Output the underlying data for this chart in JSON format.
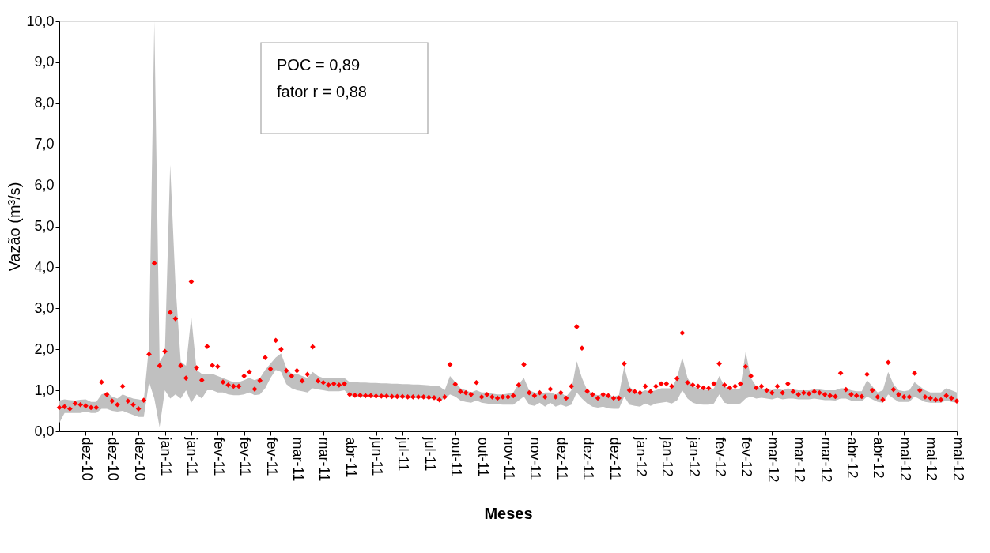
{
  "chart_data": {
    "type": "scatter",
    "xlabel": "Meses",
    "ylabel": "Vazão (m³/s)",
    "ylim": [
      0,
      10
    ],
    "yticks": [
      {
        "value": 0,
        "label": "0,0"
      },
      {
        "value": 1,
        "label": "1,0"
      },
      {
        "value": 2,
        "label": "2,0"
      },
      {
        "value": 3,
        "label": "3,0"
      },
      {
        "value": 4,
        "label": "4,0"
      },
      {
        "value": 5,
        "label": "5,0"
      },
      {
        "value": 6,
        "label": "6,0"
      },
      {
        "value": 7,
        "label": "7,0"
      },
      {
        "value": 8,
        "label": "8,0"
      },
      {
        "value": 9,
        "label": "9,0"
      },
      {
        "value": 10,
        "label": "10,0"
      }
    ],
    "grid": false,
    "marker": "diamond",
    "annotations": [
      "POC = 0,89",
      "fator r =  0,88"
    ],
    "categories": [
      null,
      null,
      null,
      null,
      null,
      "dez-10",
      null,
      null,
      null,
      null,
      "dez-10",
      null,
      null,
      null,
      null,
      "dez-10",
      null,
      null,
      null,
      null,
      "jan-11",
      null,
      null,
      null,
      null,
      "jan-11",
      null,
      null,
      null,
      null,
      "fev-11",
      null,
      null,
      null,
      null,
      "fev-11",
      null,
      null,
      null,
      null,
      "fev-11",
      null,
      null,
      null,
      null,
      "mar-11",
      null,
      null,
      null,
      null,
      "mar-11",
      null,
      null,
      null,
      null,
      "abr-11",
      null,
      null,
      null,
      null,
      "jun-11",
      null,
      null,
      null,
      null,
      "jul-11",
      null,
      null,
      null,
      null,
      "jul-11",
      null,
      null,
      null,
      null,
      "out-11",
      null,
      null,
      null,
      null,
      "out-11",
      null,
      null,
      null,
      null,
      "nov-11",
      null,
      null,
      null,
      null,
      "nov-11",
      null,
      null,
      null,
      null,
      "dez-11",
      null,
      null,
      null,
      null,
      "dez-11",
      null,
      null,
      null,
      null,
      "dez-11",
      null,
      null,
      null,
      null,
      "jan-12",
      null,
      null,
      null,
      null,
      "jan-12",
      null,
      null,
      null,
      null,
      "jan-12",
      null,
      null,
      null,
      null,
      "fev-12",
      null,
      null,
      null,
      null,
      "fev-12",
      null,
      null,
      null,
      null,
      "mar-12",
      null,
      null,
      null,
      null,
      "mar-12",
      null,
      null,
      null,
      null,
      "mar-12",
      null,
      null,
      null,
      null,
      "abr-12",
      null,
      null,
      null,
      null,
      "abr-12",
      null,
      null,
      null,
      null,
      "mai-12",
      null,
      null,
      null,
      null,
      "mai-12",
      null,
      null,
      null,
      null,
      "mai-12"
    ],
    "series": [
      {
        "color": "#ff0000",
        "values": [
          0.58,
          0.6,
          0.55,
          0.68,
          0.65,
          0.62,
          0.58,
          0.58,
          1.2,
          0.9,
          0.74,
          0.65,
          1.1,
          0.74,
          0.65,
          0.55,
          0.76,
          1.88,
          4.1,
          1.6,
          1.95,
          2.9,
          2.75,
          1.6,
          1.3,
          3.65,
          1.55,
          1.25,
          2.07,
          1.61,
          1.58,
          1.2,
          1.13,
          1.1,
          1.1,
          1.35,
          1.45,
          1.03,
          1.24,
          1.8,
          1.52,
          2.22,
          2.0,
          1.48,
          1.35,
          1.48,
          1.23,
          1.39,
          2.06,
          1.23,
          1.19,
          1.13,
          1.16,
          1.13,
          1.16,
          0.9,
          0.88,
          0.88,
          0.87,
          0.87,
          0.86,
          0.86,
          0.86,
          0.85,
          0.85,
          0.85,
          0.84,
          0.84,
          0.84,
          0.84,
          0.83,
          0.82,
          0.77,
          0.84,
          1.63,
          1.15,
          0.97,
          0.94,
          0.9,
          1.19,
          0.84,
          0.9,
          0.84,
          0.81,
          0.84,
          0.84,
          0.87,
          1.13,
          1.63,
          0.94,
          0.87,
          0.94,
          0.84,
          1.03,
          0.84,
          0.94,
          0.81,
          1.1,
          2.55,
          2.03,
          0.98,
          0.9,
          0.81,
          0.9,
          0.87,
          0.81,
          0.81,
          1.65,
          1.0,
          0.97,
          0.94,
          1.1,
          0.97,
          1.1,
          1.16,
          1.16,
          1.1,
          1.29,
          2.4,
          1.19,
          1.13,
          1.1,
          1.06,
          1.05,
          1.16,
          1.65,
          1.13,
          1.06,
          1.1,
          1.16,
          1.58,
          1.35,
          1.06,
          1.1,
          1.0,
          0.94,
          1.1,
          0.94,
          1.16,
          0.97,
          0.9,
          0.94,
          0.92,
          0.97,
          0.94,
          0.9,
          0.87,
          0.85,
          1.42,
          1.02,
          0.9,
          0.87,
          0.85,
          1.39,
          1.0,
          0.84,
          0.77,
          1.68,
          1.02,
          0.9,
          0.84,
          0.84,
          1.42,
          1.0,
          0.84,
          0.81,
          0.77,
          0.77,
          0.87,
          0.81,
          0.74
        ],
        "upper": [
          0.75,
          0.78,
          0.76,
          0.75,
          0.77,
          0.78,
          0.72,
          0.72,
          0.9,
          0.95,
          0.85,
          0.8,
          0.9,
          0.85,
          0.8,
          0.78,
          0.75,
          2.1,
          10.0,
          1.7,
          1.9,
          6.5,
          3.6,
          1.7,
          1.6,
          2.8,
          1.5,
          1.4,
          1.4,
          1.4,
          1.35,
          1.3,
          1.25,
          1.2,
          1.2,
          1.25,
          1.3,
          1.25,
          1.3,
          1.5,
          1.65,
          1.8,
          1.9,
          1.55,
          1.4,
          1.4,
          1.35,
          1.3,
          1.45,
          1.35,
          1.3,
          1.3,
          1.3,
          1.3,
          1.3,
          1.2,
          1.2,
          1.19,
          1.19,
          1.18,
          1.18,
          1.17,
          1.17,
          1.16,
          1.16,
          1.15,
          1.15,
          1.14,
          1.14,
          1.13,
          1.12,
          1.11,
          1.1,
          1.0,
          1.35,
          1.2,
          1.05,
          1.0,
          0.95,
          1.0,
          0.95,
          0.95,
          0.92,
          0.9,
          0.9,
          0.92,
          0.95,
          1.15,
          1.3,
          1.0,
          0.95,
          0.9,
          0.95,
          0.95,
          0.9,
          0.95,
          0.85,
          1.0,
          1.71,
          1.3,
          1.0,
          0.92,
          0.88,
          0.9,
          0.88,
          0.85,
          0.88,
          1.58,
          1.1,
          0.95,
          0.95,
          1.0,
          0.97,
          1.0,
          1.05,
          1.05,
          1.05,
          1.3,
          1.8,
          1.3,
          1.1,
          1.05,
          1.02,
          1.0,
          1.05,
          1.35,
          1.1,
          1.02,
          1.03,
          1.05,
          1.94,
          1.3,
          1.1,
          1.05,
          1.03,
          1.0,
          1.05,
          1.0,
          1.05,
          1.02,
          1.0,
          1.0,
          1.0,
          1.02,
          1.02,
          1.0,
          1.0,
          1.0,
          1.05,
          1.05,
          1.0,
          0.98,
          0.98,
          1.25,
          1.1,
          0.95,
          1.0,
          1.45,
          1.15,
          1.0,
          0.98,
          1.0,
          1.2,
          1.1,
          1.0,
          0.95,
          0.95,
          0.95,
          1.05,
          1.0,
          0.95
        ],
        "lower": [
          0.2,
          0.45,
          0.45,
          0.45,
          0.45,
          0.48,
          0.45,
          0.45,
          0.55,
          0.55,
          0.5,
          0.48,
          0.5,
          0.45,
          0.4,
          0.35,
          0.35,
          1.2,
          0.8,
          0.1,
          1.0,
          0.8,
          0.9,
          0.8,
          1.0,
          0.7,
          0.9,
          0.8,
          1.0,
          1.0,
          0.95,
          0.95,
          0.9,
          0.88,
          0.88,
          0.9,
          0.95,
          0.88,
          0.9,
          1.05,
          1.3,
          1.5,
          1.45,
          1.15,
          1.05,
          1.0,
          0.98,
          0.95,
          1.05,
          1.02,
          1.0,
          0.98,
          0.98,
          0.98,
          1.0,
          0.87,
          0.85,
          0.85,
          0.84,
          0.84,
          0.83,
          0.83,
          0.83,
          0.82,
          0.82,
          0.82,
          0.81,
          0.81,
          0.81,
          0.81,
          0.8,
          0.79,
          0.75,
          0.8,
          0.9,
          0.85,
          0.75,
          0.72,
          0.7,
          0.75,
          0.7,
          0.68,
          0.66,
          0.66,
          0.65,
          0.65,
          0.65,
          0.75,
          0.85,
          0.65,
          0.62,
          0.7,
          0.6,
          0.7,
          0.6,
          0.65,
          0.6,
          0.65,
          0.95,
          0.8,
          0.68,
          0.6,
          0.58,
          0.6,
          0.56,
          0.55,
          0.55,
          0.85,
          0.65,
          0.62,
          0.6,
          0.68,
          0.62,
          0.68,
          0.7,
          0.72,
          0.68,
          0.75,
          1.0,
          0.8,
          0.7,
          0.66,
          0.65,
          0.65,
          0.68,
          0.9,
          0.7,
          0.66,
          0.66,
          0.68,
          0.8,
          0.85,
          0.8,
          0.82,
          0.8,
          0.78,
          0.82,
          0.78,
          0.8,
          0.8,
          0.78,
          0.78,
          0.78,
          0.8,
          0.78,
          0.76,
          0.76,
          0.75,
          0.8,
          0.8,
          0.75,
          0.74,
          0.73,
          0.85,
          0.78,
          0.72,
          0.7,
          0.9,
          0.8,
          0.72,
          0.72,
          0.72,
          0.85,
          0.78,
          0.72,
          0.7,
          0.7,
          0.7,
          0.75,
          0.72,
          0.7
        ]
      }
    ]
  }
}
